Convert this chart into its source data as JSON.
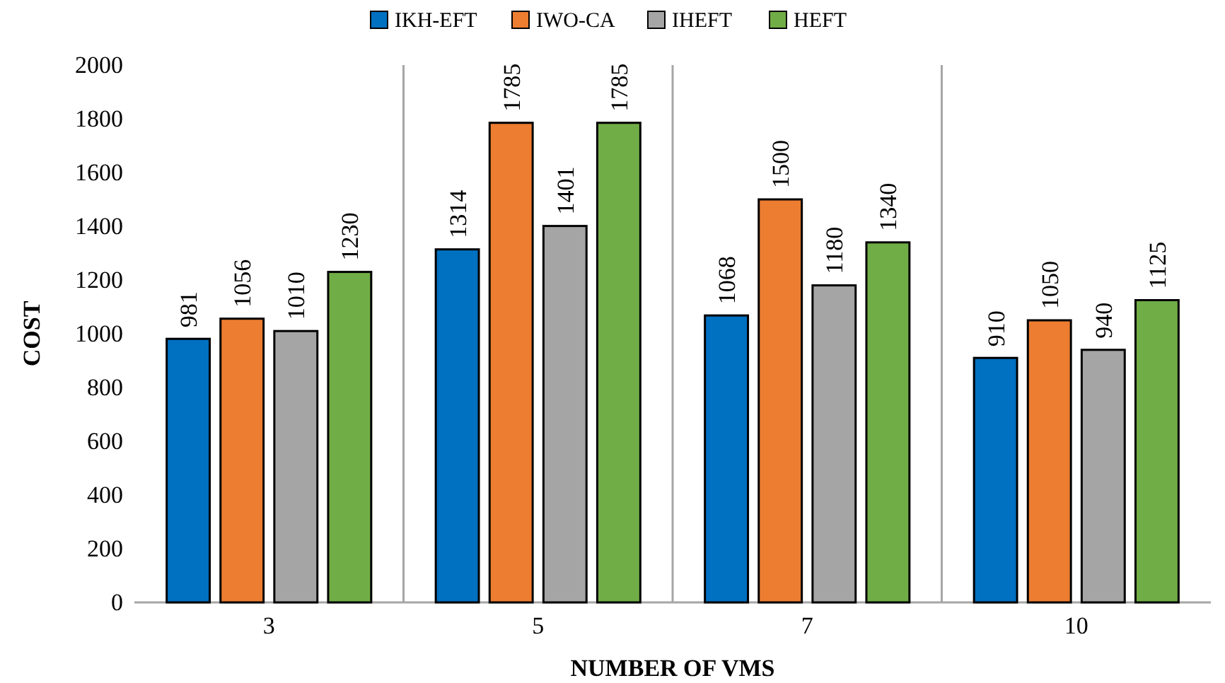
{
  "chart_data": {
    "type": "bar",
    "xlabel": "NUMBER OF VMS",
    "ylabel": "COST",
    "categories": [
      "3",
      "5",
      "7",
      "10"
    ],
    "series": [
      {
        "name": "IKH-EFT",
        "color": "#0070c0",
        "values": [
          981,
          1314,
          1068,
          910
        ]
      },
      {
        "name": "IWO-CA",
        "color": "#ed7d31",
        "values": [
          1056,
          1785,
          1500,
          1050
        ]
      },
      {
        "name": "IHEFT",
        "color": "#a5a5a5",
        "values": [
          1010,
          1401,
          1180,
          940
        ]
      },
      {
        "name": "HEFT",
        "color": "#70ad47",
        "values": [
          1230,
          1785,
          1340,
          1125
        ]
      }
    ],
    "ylim": [
      0,
      2000
    ],
    "yticks": [
      0,
      200,
      400,
      600,
      800,
      1000,
      1200,
      1400,
      1600,
      1800,
      2000
    ],
    "grid": false,
    "legend": "top",
    "data_labels": true
  }
}
